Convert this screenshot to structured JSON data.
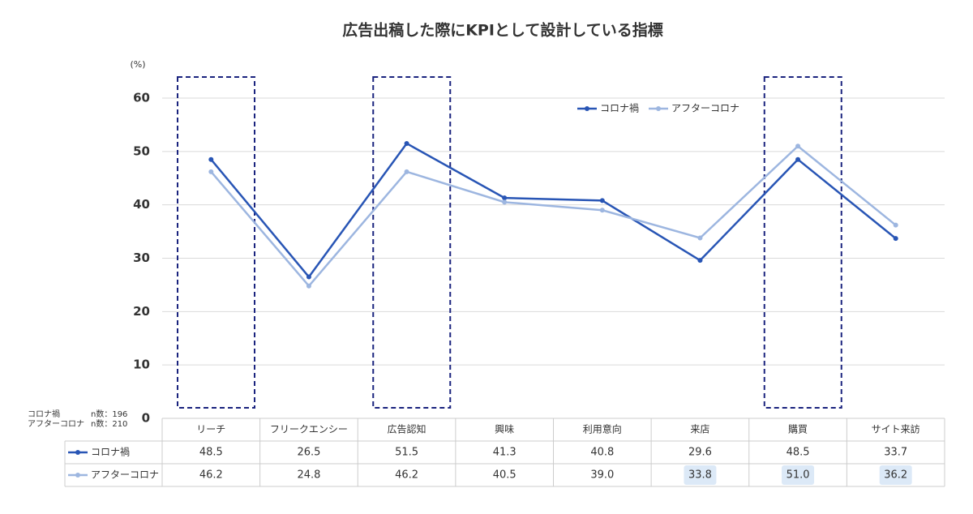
{
  "chart_data": {
    "type": "line",
    "title": "広告出稿した際にKPIとして設計している指標",
    "y_label": "(%)",
    "categories": [
      "リーチ",
      "フリークエンシー",
      "広告認知",
      "興味",
      "利用意向",
      "来店",
      "購買",
      "サイト来訪"
    ],
    "series": [
      {
        "name": "コロナ禍",
        "color": "#2855b5",
        "values": [
          48.5,
          26.5,
          51.5,
          41.3,
          40.8,
          29.6,
          48.5,
          33.7
        ],
        "value_labels": [
          "48.5",
          "26.5",
          "51.5",
          "41.3",
          "40.8",
          "29.6",
          "48.5",
          "33.7"
        ],
        "n_label": "n数：196"
      },
      {
        "name": "アフターコロナ",
        "color": "#9db6e0",
        "values": [
          46.2,
          24.8,
          46.2,
          40.5,
          39.0,
          33.8,
          51.0,
          36.2
        ],
        "value_labels": [
          "46.2",
          "24.8",
          "46.2",
          "40.5",
          "39.0",
          "33.8",
          "51.0",
          "36.2"
        ],
        "n_label": "n数：210"
      }
    ],
    "ylim": [
      0,
      60
    ],
    "yticks": [
      0,
      10,
      20,
      30,
      40,
      50,
      60
    ],
    "grid": true
  }
}
